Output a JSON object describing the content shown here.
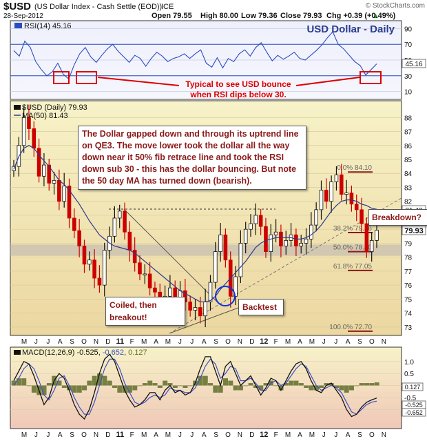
{
  "header": {
    "symbol": "$USD",
    "name": "(US Dollar Index - Cash Settle (EOD))",
    "exchange": "ICE",
    "credit": "© StockCharts.com",
    "date": "28-Sep-2012",
    "open": "Open 79.55",
    "high": "High 80.00",
    "low": "Low 79.36",
    "close": "Close 79.93",
    "change": "Chg +0.39 (+0.49%)",
    "change_arrow": "▲",
    "up_color": "#22aa22"
  },
  "colors": {
    "rsi_line": "#2a4cc0",
    "up_bar": "#111111",
    "down_bar": "#cc0000",
    "ma_line": "#2b3a8f",
    "macd_line": "#111111",
    "signal_line": "#3a50c8",
    "histogram": "#5f6f2a",
    "price_bg_top": "#f7f2c8",
    "price_bg_bottom": "#ecd7a0",
    "annotation_text": "#8b1a1a",
    "box_red": "#dd0000",
    "circle_blue": "#1133dd"
  },
  "chart_data": [
    {
      "panel": "RSI",
      "type": "line",
      "legend": "RSI(14) 45.16",
      "last_value": "45.16",
      "title": "USD Dollar - Daily",
      "ylim": [
        0,
        100
      ],
      "y_ticks": [
        "90",
        "70",
        "50",
        "30",
        "10"
      ],
      "reference_lines": [
        70,
        30
      ],
      "values": [
        62,
        55,
        74,
        66,
        48,
        38,
        30,
        35,
        46,
        32,
        26,
        44,
        58,
        66,
        54,
        47,
        56,
        64,
        70,
        61,
        54,
        47,
        56,
        52,
        42,
        52,
        60,
        55,
        48,
        52,
        54,
        58,
        52,
        58,
        63,
        46,
        41,
        53,
        40,
        52,
        48,
        58,
        63,
        55,
        66,
        72,
        60,
        49,
        56,
        51,
        55,
        60,
        52,
        50,
        56,
        62,
        69,
        78,
        86,
        70,
        64,
        56,
        48,
        43,
        31,
        38,
        45.16
      ],
      "annotation": "Typical to see USD bounce when RSI dips below 30."
    },
    {
      "panel": "Price",
      "type": "candlestick",
      "legend_symbol": "$USD (Daily) 79.93",
      "legend_ma": "MA(50) 81.43",
      "ylim": [
        72.4,
        89.2
      ],
      "y_ticks": [
        "88",
        "87",
        "86",
        "85",
        "84",
        "83",
        "82",
        "81",
        "80",
        "79",
        "78",
        "77",
        "76",
        "75",
        "74",
        "73"
      ],
      "close": [
        84.5,
        86.0,
        88.0,
        87.2,
        85.8,
        83.8,
        84.6,
        83.3,
        83.5,
        82.0,
        83.1,
        80.8,
        79.9,
        78.8,
        77.5,
        77.8,
        76.5,
        76.0,
        78.5,
        79.5,
        80.8,
        81.3,
        79.8,
        78.5,
        77.6,
        76.8,
        76.8,
        75.8,
        75.5,
        74.2,
        75.2,
        75.8,
        74.6,
        75.6,
        74.8,
        74.2,
        74.4,
        73.8,
        74.8,
        76.2,
        78.4,
        79.6,
        77.8,
        75.2,
        76.6,
        79.0,
        80.0,
        80.4,
        81.0,
        80.2,
        78.4,
        79.6,
        79.8,
        78.8,
        79.2,
        79.6,
        78.8,
        79.0,
        79.3,
        80.3,
        81.4,
        82.8,
        82.0,
        83.4,
        83.9,
        82.5,
        82.6,
        81.8,
        81.4,
        80.4,
        78.4,
        79.2,
        79.93
      ],
      "ma50": [
        84.3,
        85.2,
        85.8,
        86.0,
        85.8,
        85.3,
        84.9,
        84.5,
        84.0,
        83.5,
        83.2,
        82.8,
        82.3,
        81.8,
        81.2,
        80.6,
        80.1,
        79.6,
        79.3,
        79.0,
        78.8,
        78.7,
        78.6,
        78.5,
        78.3,
        78.0,
        77.7,
        77.4,
        77.1,
        76.8,
        76.5,
        76.2,
        75.9,
        75.6,
        75.4,
        75.2,
        75.0,
        74.8,
        74.8,
        74.9,
        75.2,
        75.7,
        76.1,
        76.5,
        76.9,
        77.3,
        77.7,
        78.2,
        78.7,
        79.0,
        79.2,
        79.3,
        79.4,
        79.4,
        79.4,
        79.4,
        79.3,
        79.3,
        79.4,
        79.6,
        79.9,
        80.3,
        80.8,
        81.3,
        81.7,
        82.0,
        82.1,
        82.1,
        82.0,
        81.8,
        81.7,
        81.5,
        81.43
      ],
      "fib_levels": [
        {
          "label": "0.0% 84.10",
          "value": 84.1
        },
        {
          "label": "38.2% 79.76",
          "value": 79.76
        },
        {
          "label": "50.0% 78.40",
          "value": 78.4
        },
        {
          "label": "61.8% 77.05",
          "value": 77.05
        },
        {
          "label": "100.0% 72.70",
          "value": 72.7
        }
      ],
      "right_labels": [
        "81.43",
        "79.93"
      ],
      "annotations": {
        "main": "The Dollar gapped down and through its uptrend line on QE3. The move lower took the dollar all the way down near it 50% fib retrace line and took the RSI down sub 30 - this has the dollar bouncing. But note the 50 day MA has turned down (bearish).",
        "coiled": "Coiled, then breakout!",
        "backtest": "Backtest",
        "breakdown": "Breakdown?"
      },
      "x_ticks": [
        "M",
        "J",
        "J",
        "A",
        "S",
        "O",
        "N",
        "D",
        "11",
        "F",
        "M",
        "A",
        "M",
        "J",
        "J",
        "A",
        "S",
        "O",
        "N",
        "D",
        "12",
        "F",
        "M",
        "A",
        "M",
        "J",
        "J",
        "A",
        "S",
        "O",
        "N"
      ]
    },
    {
      "panel": "MACD",
      "type": "line",
      "legend": "MACD(12,26,9) -0.525, -0.652, 0.127",
      "macd_value": "-0.525",
      "signal_value": "-0.652",
      "hist_value": "0.127",
      "ylim": [
        -1.8,
        1.6
      ],
      "y_ticks": [
        "1.0",
        "0.5",
        "0.0",
        "-0.5",
        "-1.0"
      ],
      "right_labels": [
        "0.127",
        "-0.525",
        "-0.652"
      ],
      "macd": [
        0.2,
        0.6,
        1.0,
        0.9,
        0.4,
        -0.2,
        -0.8,
        -0.5,
        0.2,
        0.5,
        0.3,
        -0.2,
        -0.8,
        -1.2,
        -1.4,
        -1.0,
        -0.3,
        0.5,
        1.1,
        1.3,
        1.0,
        0.4,
        -0.2,
        -0.6,
        -0.9,
        -0.8,
        -0.6,
        -0.3,
        -0.3,
        -0.6,
        -0.2,
        0.0,
        -0.3,
        -0.2,
        -0.4,
        -0.3,
        0.1,
        0.7,
        1.2,
        1.2,
        0.6,
        0.0,
        0.8,
        1.0,
        0.5,
        0.0,
        0.2,
        0.4,
        0.0,
        -0.4,
        -0.1,
        0.3,
        0.2,
        -0.2,
        0.2,
        0.6,
        0.9,
        1.0,
        0.7,
        0.2,
        -0.2,
        -0.3,
        0.0,
        0.1,
        -0.2,
        -0.5,
        -1.0,
        -1.3,
        -1.2,
        -0.9,
        -0.7,
        -0.6,
        -0.525
      ],
      "signal": [
        0.0,
        0.3,
        0.7,
        0.9,
        0.7,
        0.2,
        -0.4,
        -0.6,
        -0.2,
        0.3,
        0.4,
        0.0,
        -0.5,
        -0.9,
        -1.2,
        -1.2,
        -0.7,
        0.0,
        0.7,
        1.1,
        1.1,
        0.7,
        0.1,
        -0.3,
        -0.7,
        -0.8,
        -0.7,
        -0.5,
        -0.4,
        -0.5,
        -0.4,
        -0.1,
        -0.2,
        -0.2,
        -0.3,
        -0.3,
        -0.1,
        0.3,
        0.8,
        1.1,
        0.9,
        0.3,
        0.5,
        0.8,
        0.7,
        0.2,
        0.2,
        0.3,
        0.1,
        -0.2,
        -0.2,
        0.1,
        0.2,
        0.0,
        0.1,
        0.4,
        0.7,
        0.9,
        0.8,
        0.4,
        0.0,
        -0.2,
        -0.1,
        0.0,
        -0.1,
        -0.3,
        -0.7,
        -1.1,
        -1.2,
        -1.0,
        -0.8,
        -0.7,
        -0.652
      ],
      "x_ticks": [
        "M",
        "J",
        "J",
        "A",
        "S",
        "O",
        "N",
        "D",
        "11",
        "F",
        "M",
        "A",
        "M",
        "J",
        "J",
        "A",
        "S",
        "O",
        "N",
        "D",
        "12",
        "F",
        "M",
        "A",
        "M",
        "J",
        "J",
        "A",
        "S",
        "O",
        "N"
      ]
    }
  ]
}
